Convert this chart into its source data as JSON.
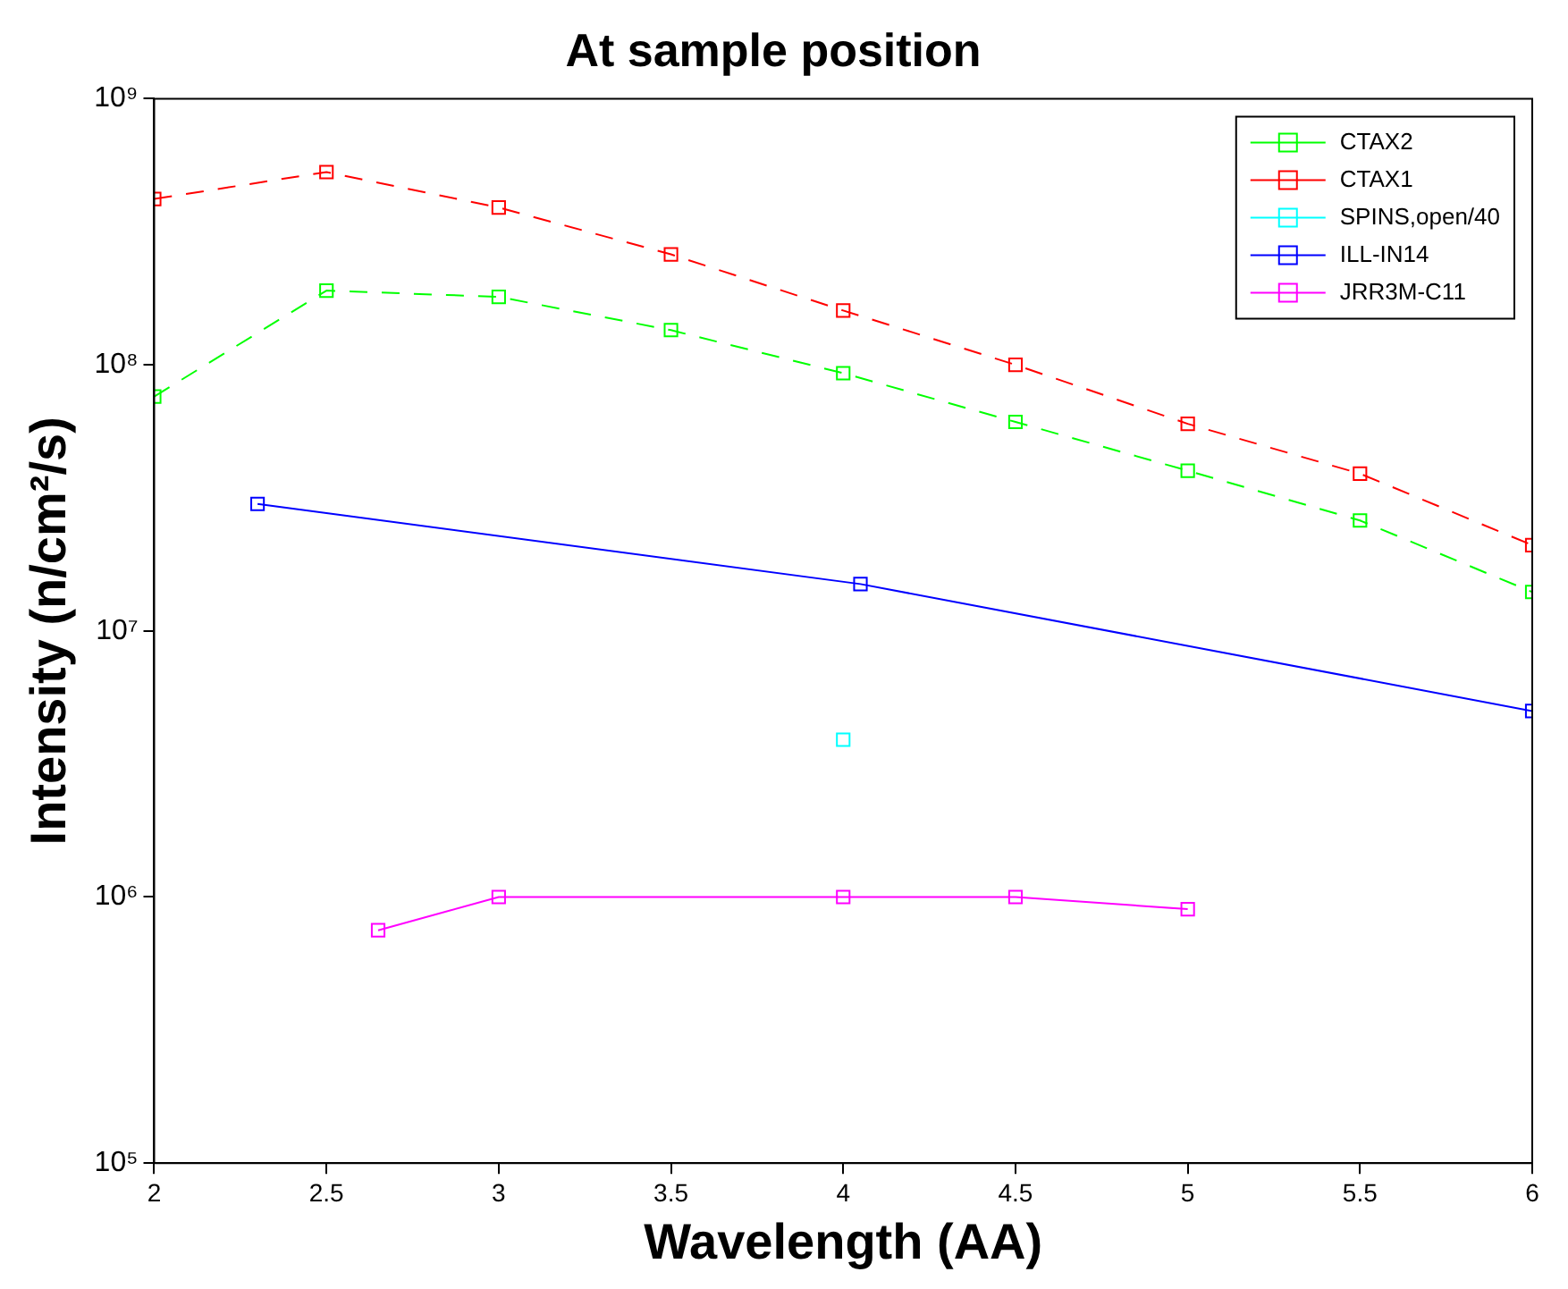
{
  "chart_data": {
    "type": "line",
    "title": "At sample position",
    "xlabel": "Wavelength (AA)",
    "ylabel": "Intensity (n/cm²/s)",
    "log": "y",
    "grid": false,
    "legend": "top right",
    "marker": "square",
    "xlim": [
      2,
      6
    ],
    "xticks": [
      2,
      2.5,
      3,
      3.5,
      4,
      4.5,
      5,
      5.5,
      6
    ],
    "ylim": [
      100000,
      1000000000
    ],
    "yticks": [
      {
        "value": 100000,
        "label": "10⁵"
      },
      {
        "value": 1000000,
        "label": "10⁶"
      },
      {
        "value": 10000000,
        "label": "10⁷"
      },
      {
        "value": 100000000,
        "label": "10⁸"
      },
      {
        "value": 1000000000,
        "label": "10⁹"
      }
    ],
    "series": [
      {
        "name": "CTAX2",
        "color": "#00ff00",
        "line_style": "dashed",
        "x": [
          2,
          2.5,
          3,
          3.5,
          4,
          4.5,
          5,
          5.5,
          6
        ],
        "values": [
          76000000,
          190000000,
          180000000,
          135000000,
          93000000,
          61000000,
          40000000,
          26000000,
          14000000
        ]
      },
      {
        "name": "CTAX1",
        "color": "#ff0000",
        "line_style": "dashed",
        "x": [
          2,
          2.5,
          3,
          3.5,
          4,
          4.5,
          5,
          5.5,
          6
        ],
        "values": [
          420000000,
          530000000,
          390000000,
          260000000,
          160000000,
          100000000,
          60000000,
          39000000,
          21000000
        ]
      },
      {
        "name": "SPINS,open/40",
        "color": "#00ffff",
        "line_style": "solid",
        "x": [
          4
        ],
        "values": [
          3900000
        ]
      },
      {
        "name": "ILL-IN14",
        "color": "#0000ff",
        "line_style": "solid",
        "x": [
          2.3,
          4.05,
          6
        ],
        "values": [
          30000000,
          15000000,
          5000000
        ]
      },
      {
        "name": "JRR3M-C11",
        "color": "#ff00ff",
        "line_style": "solid",
        "x": [
          2.65,
          3,
          4,
          4.5,
          5
        ],
        "values": [
          750000,
          1000000,
          1000000,
          1000000,
          900000
        ]
      }
    ]
  }
}
